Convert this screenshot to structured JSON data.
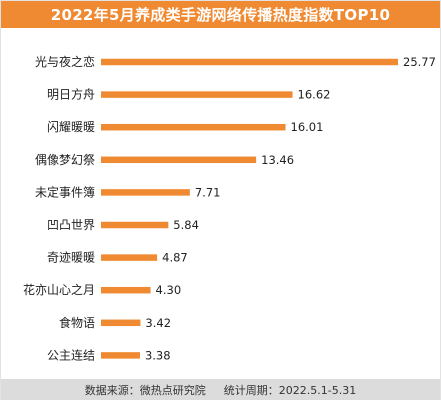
{
  "header": {
    "title": "2022年5月养成类手游网络传播热度指数TOP10"
  },
  "footer": {
    "source": "数据来源：微热点研究院",
    "period": "统计周期：2022.5.1-5.31"
  },
  "colors": {
    "bar": "#f08a32",
    "title_bg": "#f08a32",
    "footer_bg": "#dcdcdc"
  },
  "chart_data": {
    "type": "bar",
    "orientation": "horizontal",
    "title": "2022年5月养成类手游网络传播热度指数TOP10",
    "categories": [
      "光与夜之恋",
      "明日方舟",
      "闪耀暖暖",
      "偶像梦幻祭",
      "未定事件簿",
      "凹凸世界",
      "奇迹暖暖",
      "花亦山心之月",
      "食物语",
      "公主连结"
    ],
    "values": [
      25.77,
      16.62,
      16.01,
      13.46,
      7.71,
      5.84,
      4.87,
      4.3,
      3.42,
      3.38
    ],
    "value_labels": [
      "25.77",
      "16.62",
      "16.01",
      "13.46",
      "7.71",
      "5.84",
      "4.87",
      "4.30",
      "3.42",
      "3.38"
    ],
    "xlim": [
      0,
      25.77
    ],
    "grid": false,
    "legend": "none"
  }
}
